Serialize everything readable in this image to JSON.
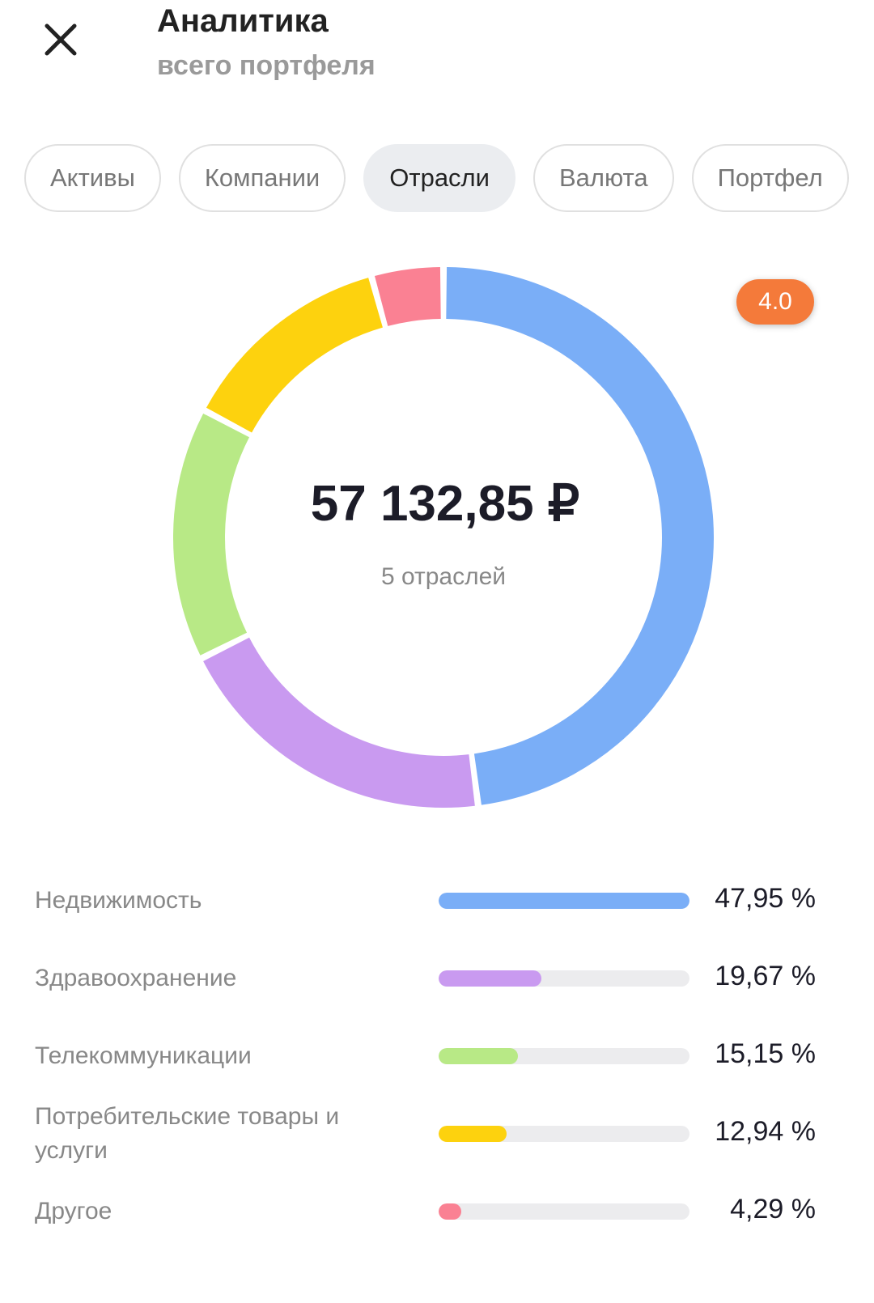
{
  "header": {
    "title": "Аналитика",
    "subtitle": "всего портфеля"
  },
  "tabs": [
    {
      "label": "Активы",
      "selected": false
    },
    {
      "label": "Компании",
      "selected": false
    },
    {
      "label": "Отрасли",
      "selected": true
    },
    {
      "label": "Валюта",
      "selected": false
    },
    {
      "label": "Портфел",
      "selected": false
    }
  ],
  "badge": "4.0",
  "chart_data": {
    "type": "donut",
    "center_title": "57 132,85 ₽",
    "center_subtitle": "5 отраслей",
    "categories": [
      "Недвижимость",
      "Здравоохранение",
      "Телекоммуникации",
      "Потребительские товары и услуги",
      "Другое"
    ],
    "values": [
      47.95,
      19.67,
      15.15,
      12.94,
      4.29
    ],
    "value_labels": [
      "47,95 %",
      "19,67 %",
      "15,15 %",
      "12,94 %",
      "4,29 %"
    ],
    "colors": [
      "#7aaef7",
      "#c99af0",
      "#b8e986",
      "#fdd20e",
      "#fa8193"
    ]
  }
}
